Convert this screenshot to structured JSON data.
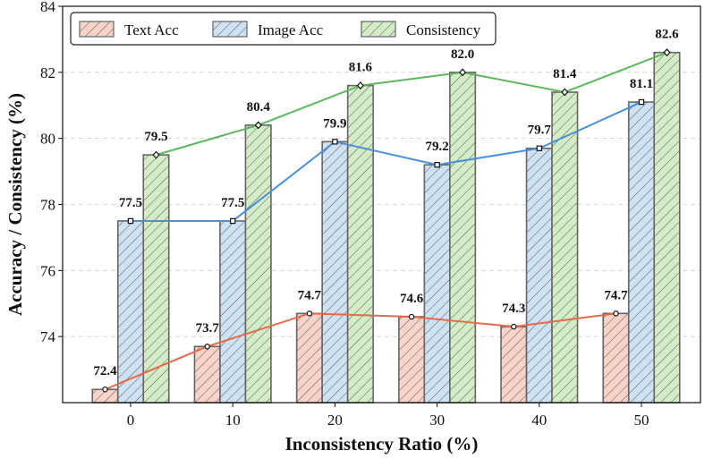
{
  "chart_data": {
    "type": "bar",
    "xlabel": "Inconsistency Ratio (%)",
    "ylabel": "Accuracy / Consistency (%)",
    "ylim": [
      72.0,
      84.0
    ],
    "yticks": [
      74,
      76,
      78,
      80,
      82,
      84
    ],
    "categories": [
      "0",
      "10",
      "20",
      "30",
      "40",
      "50"
    ],
    "series": [
      {
        "name": "Text Acc",
        "values": [
          72.4,
          73.7,
          74.7,
          74.6,
          74.3,
          74.7
        ],
        "fill": "#f9d3c9",
        "line": "#e36a4a",
        "marker": "circle"
      },
      {
        "name": "Image Acc",
        "values": [
          77.5,
          77.5,
          79.9,
          79.2,
          79.7,
          81.1
        ],
        "fill": "#cfe2f3",
        "line": "#4a90d9",
        "marker": "square"
      },
      {
        "name": "Consistency",
        "values": [
          79.5,
          80.4,
          81.6,
          82.0,
          81.4,
          82.6
        ],
        "fill": "#d5edc7",
        "line": "#5cb85c",
        "marker": "diamond"
      }
    ],
    "data_labels": [
      [
        "72.4",
        "73.7",
        "74.7",
        "74.6",
        "74.3",
        "74.7"
      ],
      [
        "77.5",
        "77.5",
        "79.9",
        "79.2",
        "79.7",
        "81.1"
      ],
      [
        "79.5",
        "80.4",
        "81.6",
        "82.0",
        "81.4",
        "82.6"
      ]
    ],
    "legend": [
      "Text Acc",
      "Image Acc",
      "Consistency"
    ],
    "legend_position": "top-left",
    "grid": true
  }
}
